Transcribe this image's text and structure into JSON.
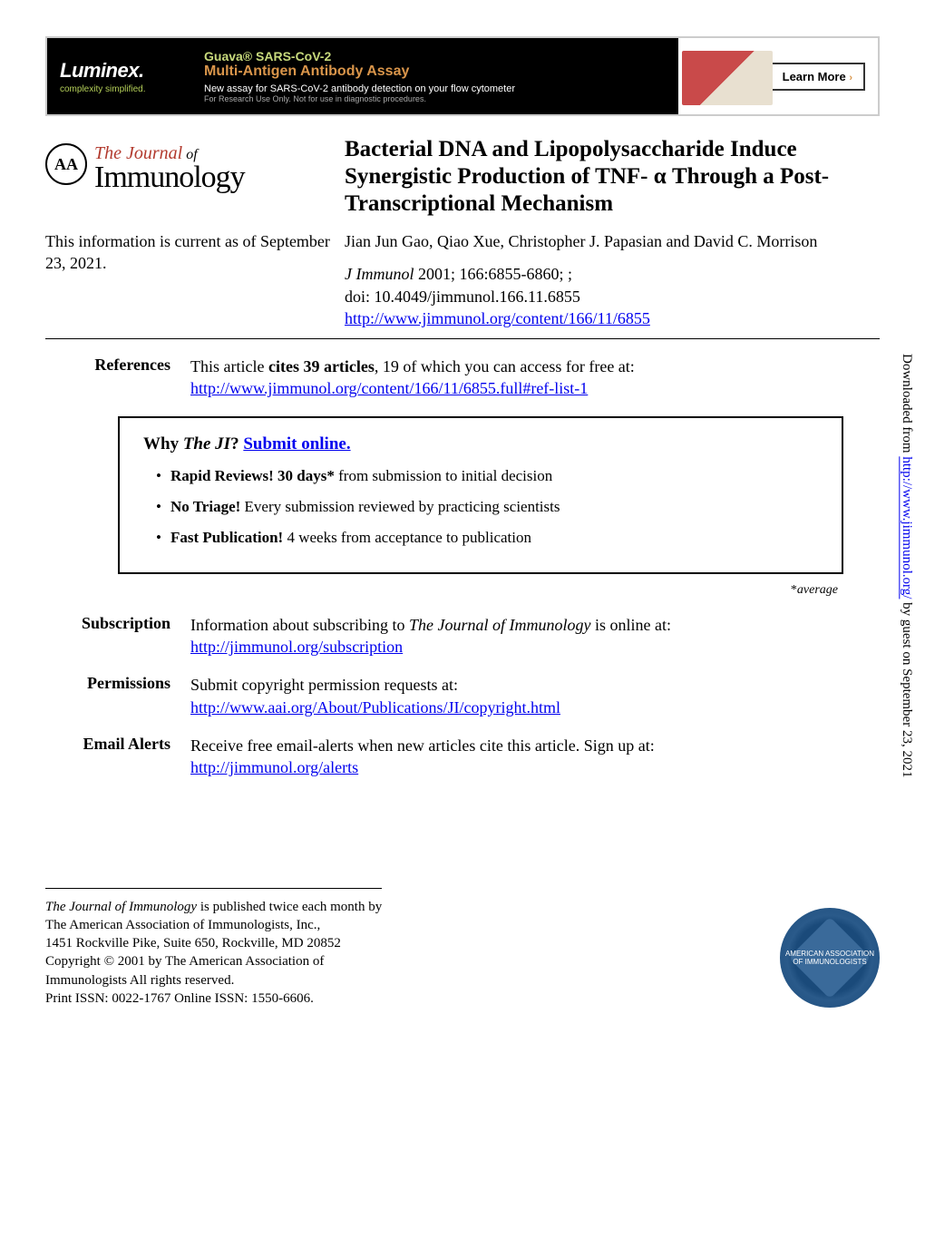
{
  "ad": {
    "brand": "Luminex.",
    "brand_tag": "complexity simplified.",
    "line1": "Guava® SARS-CoV-2",
    "line2": "Multi-Antigen Antibody Assay",
    "line3": "New assay for SARS-CoV-2 antibody detection on your flow cytometer",
    "line4": "For Research Use Only. Not for use in diagnostic procedures.",
    "button": "Learn More",
    "colors": {
      "brand_bg": "#000000",
      "accent_green": "#c8da7c",
      "accent_orange": "#d9954a"
    }
  },
  "journal": {
    "seal_text": "AA",
    "the_journal": "The Journal",
    "of": "of",
    "immunology": "Immunology"
  },
  "article": {
    "title": "Bacterial DNA and Lipopolysaccharide Induce Synergistic Production of TNF- α Through a Post-Transcriptional Mechanism",
    "current_info": "This information is current as of September 23, 2021.",
    "authors": "Jian Jun Gao, Qiao Xue, Christopher J. Papasian and David C. Morrison",
    "citation_journal": "J Immunol",
    "citation_rest": " 2001; 166:6855-6860; ;",
    "doi": "doi: 10.4049/jimmunol.166.11.6855",
    "url": "http://www.jimmunol.org/content/166/11/6855"
  },
  "references": {
    "label": "References",
    "text_pre": "This article ",
    "text_bold": "cites 39 articles",
    "text_post": ", 19 of which you can access for free at:",
    "url": "http://www.jimmunol.org/content/166/11/6855.full#ref-list-1"
  },
  "why_ji": {
    "heading_why": "Why ",
    "heading_ji": "The JI",
    "heading_q": "? ",
    "submit_link": "Submit online.",
    "items": [
      {
        "bold": "Rapid Reviews! 30 days*",
        "rest": " from submission to initial decision"
      },
      {
        "bold": "No Triage!",
        "rest": " Every submission reviewed by practicing scientists"
      },
      {
        "bold": "Fast Publication!",
        "rest": " 4 weeks from acceptance to publication"
      }
    ],
    "average": "*average"
  },
  "subscription": {
    "label": "Subscription",
    "text_pre": "Information about subscribing to ",
    "text_ital": "The Journal of Immunology",
    "text_post": " is online at:",
    "url": "http://jimmunol.org/subscription"
  },
  "permissions": {
    "label": "Permissions",
    "text": "Submit copyright permission requests at:",
    "url": "http://www.aai.org/About/Publications/JI/copyright.html"
  },
  "email_alerts": {
    "label": "Email Alerts",
    "text": "Receive free email-alerts when new articles cite this article. Sign up at:",
    "url": "http://jimmunol.org/alerts"
  },
  "footer": {
    "line1_ital": "The Journal of Immunology",
    "line1_rest": " is published twice each month by",
    "line2": "The American Association of Immunologists, Inc.,",
    "line3": "1451 Rockville Pike, Suite 650, Rockville, MD 20852",
    "line4": "Copyright © 2001 by The American Association of",
    "line5": "Immunologists All rights reserved.",
    "line6": "Print ISSN: 0022-1767 Online ISSN: 1550-6606."
  },
  "sidebar": {
    "pre": "Downloaded from ",
    "url": "http://www.jimmunol.org/",
    "post": " by guest on September 23, 2021"
  },
  "colors": {
    "link": "#0000ee",
    "journal_red": "#b23a2e",
    "body_bg": "#ffffff",
    "text": "#000000"
  },
  "typography": {
    "body_font": "Georgia, 'Times New Roman', serif",
    "title_size_pt": 25,
    "body_size_pt": 18,
    "section_label_bold": true
  }
}
